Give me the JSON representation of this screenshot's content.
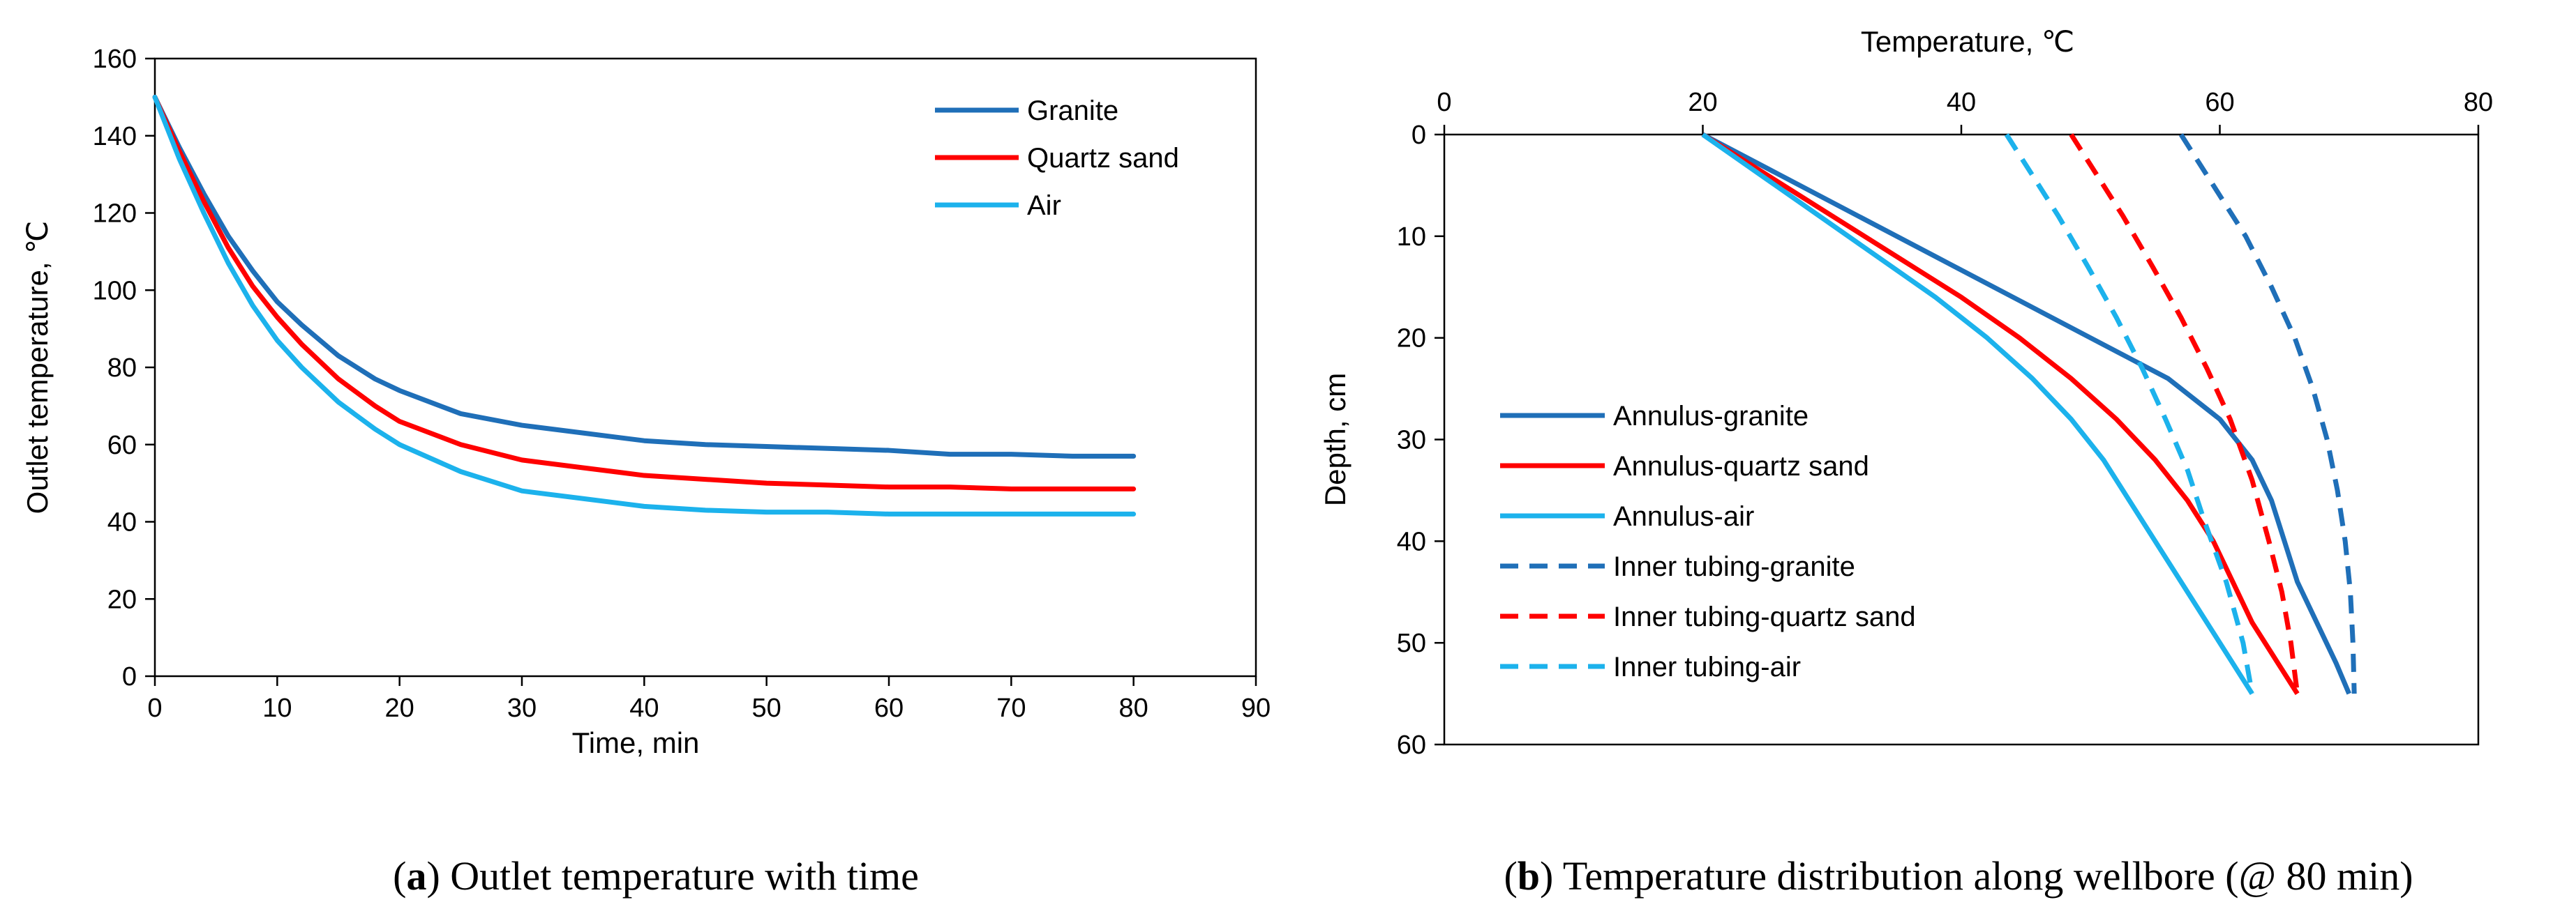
{
  "captions": {
    "a_letter": "a",
    "a_text": " Outlet temperature with time",
    "b_letter": "b",
    "b_text": " Temperature distribution along wellbore (@ 80 min)"
  },
  "chart_data": [
    {
      "id": "a",
      "type": "line",
      "title": "",
      "xlabel": "Time,  min",
      "ylabel": "Outlet temperature,  ℃",
      "xlim": [
        0,
        90
      ],
      "ylim": [
        0,
        160
      ],
      "xticks": [
        "0",
        "10",
        "20",
        "30",
        "40",
        "50",
        "60",
        "70",
        "80",
        "90"
      ],
      "yticks": [
        "0",
        "20",
        "40",
        "60",
        "80",
        "100",
        "120",
        "140",
        "160"
      ],
      "legend_position": "top-right",
      "series": [
        {
          "name": "Granite",
          "color": "#1F6FB8",
          "style": "solid",
          "x": [
            0,
            2,
            4,
            6,
            8,
            10,
            12,
            15,
            18,
            20,
            25,
            30,
            35,
            40,
            45,
            50,
            55,
            60,
            65,
            70,
            75,
            80
          ],
          "y": [
            150,
            137,
            125,
            114,
            105,
            97,
            91,
            83,
            77,
            74,
            68,
            65,
            63,
            61,
            60,
            59.5,
            59,
            58.5,
            57.5,
            57.5,
            57,
            57
          ]
        },
        {
          "name": "Quartz sand",
          "color": "#FF0000",
          "style": "solid",
          "x": [
            0,
            2,
            4,
            6,
            8,
            10,
            12,
            15,
            18,
            20,
            25,
            30,
            35,
            40,
            45,
            50,
            55,
            60,
            65,
            70,
            75,
            80
          ],
          "y": [
            150,
            136,
            123,
            111,
            101,
            93,
            86,
            77,
            70,
            66,
            60,
            56,
            54,
            52,
            51,
            50,
            49.5,
            49,
            49,
            48.5,
            48.5,
            48.5
          ]
        },
        {
          "name": "Air",
          "color": "#1CB2EC",
          "style": "solid",
          "x": [
            0,
            2,
            4,
            6,
            8,
            10,
            12,
            15,
            18,
            20,
            25,
            30,
            35,
            40,
            45,
            50,
            55,
            60,
            65,
            70,
            75,
            80
          ],
          "y": [
            150,
            134,
            120,
            107,
            96,
            87,
            80,
            71,
            64,
            60,
            53,
            48,
            46,
            44,
            43,
            42.5,
            42.5,
            42,
            42,
            42,
            42,
            42
          ]
        }
      ]
    },
    {
      "id": "b",
      "type": "line",
      "title": "",
      "xlabel": "Temperature,  ℃",
      "ylabel": "Depth,  cm",
      "xlim": [
        0,
        80
      ],
      "ylim": [
        0,
        60
      ],
      "y_inverted": true,
      "x_axis_position": "top",
      "xticks": [
        "0",
        "20",
        "40",
        "60",
        "80"
      ],
      "yticks": [
        "0",
        "10",
        "20",
        "30",
        "40",
        "50",
        "60"
      ],
      "legend_position": "bottom-left",
      "series": [
        {
          "name": "Annulus-granite",
          "color": "#1F6FB8",
          "style": "solid",
          "x": [
            20,
            26,
            32,
            38,
            44,
            50,
            56,
            60,
            62.5,
            64,
            65,
            66,
            67.5,
            69,
            70
          ],
          "y": [
            0,
            4,
            8,
            12,
            16,
            20,
            24,
            28,
            32,
            36,
            40,
            44,
            48,
            52,
            55
          ]
        },
        {
          "name": "Annulus-quartz sand",
          "color": "#FF0000",
          "style": "solid",
          "x": [
            20,
            25,
            30,
            35,
            40,
            44.5,
            48.5,
            52,
            55,
            57.5,
            59.5,
            61,
            62.5,
            64.5,
            66
          ],
          "y": [
            0,
            4,
            8,
            12,
            16,
            20,
            24,
            28,
            32,
            36,
            40,
            44,
            48,
            52,
            55
          ]
        },
        {
          "name": "Annulus-air",
          "color": "#1CB2EC",
          "style": "solid",
          "x": [
            20,
            24.5,
            29,
            33.5,
            38,
            42,
            45.5,
            48.5,
            51,
            53,
            55,
            57,
            59,
            61,
            62.5
          ],
          "y": [
            0,
            4,
            8,
            12,
            16,
            20,
            24,
            28,
            32,
            36,
            40,
            44,
            48,
            52,
            55
          ]
        },
        {
          "name": "Inner tubing-granite",
          "color": "#1F6FB8",
          "style": "dashed",
          "x": [
            57,
            59.5,
            62,
            64,
            65.8,
            67.2,
            68.3,
            69.1,
            69.7,
            70.1,
            70.3,
            70.4
          ],
          "y": [
            0,
            5,
            10,
            15,
            20,
            25,
            30,
            35,
            40,
            45,
            50,
            55
          ]
        },
        {
          "name": "Inner tubing-quartz sand",
          "color": "#FF0000",
          "style": "dashed",
          "x": [
            48.5,
            50.5,
            52.5,
            54.8,
            57,
            59,
            60.8,
            62.5,
            63.8,
            64.8,
            65.5,
            66
          ],
          "y": [
            0,
            4,
            8,
            13,
            18,
            23,
            28,
            34,
            40,
            45,
            50,
            55
          ]
        },
        {
          "name": "Inner tubing-air",
          "color": "#1CB2EC",
          "style": "dashed",
          "x": [
            43.5,
            45.5,
            47.5,
            49.8,
            52,
            54,
            55.8,
            57.5,
            58.8,
            60.5,
            61.8,
            62.5
          ],
          "y": [
            0,
            4,
            8,
            13,
            18,
            23,
            28,
            33,
            38,
            44,
            50,
            55
          ]
        }
      ]
    }
  ]
}
